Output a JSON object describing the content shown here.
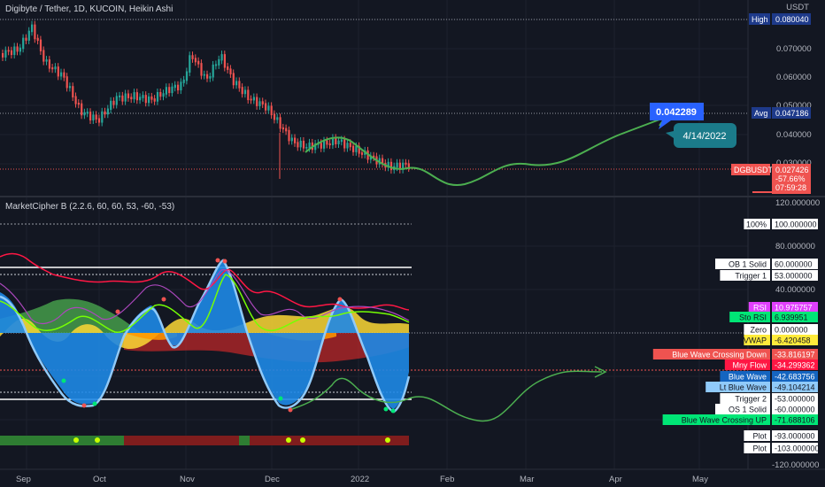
{
  "header": {
    "symbol_title": "Digibyte / Tether, 1D, KUCOIN, Heikin Ashi",
    "indicator_title": "MarketCipher B (2.2.6, 60, 60, 53, -60, -53)"
  },
  "price_axis": {
    "currency": "USDT",
    "ticks": [
      "0.070000",
      "0.060000",
      "0.050000",
      "0.040000",
      "0.030000"
    ],
    "markers": [
      {
        "tag": "High",
        "value": "0.080040",
        "bg": "#1e3a8a",
        "tagcolor": "#ffffff"
      },
      {
        "tag": "Avg",
        "value": "0.047186",
        "bg": "#1e3a8a",
        "tagcolor": "#ffffff"
      },
      {
        "tag": "DGBUSDT",
        "value": "0.027426",
        "bg": "#ef5350",
        "tagcolor": "#ffffff"
      }
    ],
    "last_change": "-57.66%",
    "countdown": "07:59:28"
  },
  "annotations": {
    "price_callout": "0.042289",
    "date_callout": "4/14/2022"
  },
  "indicator_axis": {
    "ticks": [
      "120.000000",
      "80.000000",
      "40.000000",
      "-120.000000"
    ],
    "labels": [
      {
        "name": "100%",
        "value": "100.000000",
        "bg": "#ffffff",
        "fg": "#131722"
      },
      {
        "name": "OB 1 Solid",
        "value": "60.000000",
        "bg": "#ffffff",
        "fg": "#131722"
      },
      {
        "name": "Trigger 1",
        "value": "53.000000",
        "bg": "#ffffff",
        "fg": "#131722"
      },
      {
        "name": "RSI",
        "value": "10.975757",
        "bg": "#e040fb",
        "fg": "#ffffff"
      },
      {
        "name": "Sto RSI",
        "value": "6.939951",
        "bg": "#00e676",
        "fg": "#131722"
      },
      {
        "name": "Zero",
        "value": "0.000000",
        "bg": "#ffffff",
        "fg": "#131722"
      },
      {
        "name": "VWAP",
        "value": "-6.420458",
        "bg": "#ffeb3b",
        "fg": "#131722"
      },
      {
        "name": "Blue Wave Crossing Down",
        "value": "-33.816197",
        "bg": "#ef5350",
        "fg": "#ffffff"
      },
      {
        "name": "Mny Flow",
        "value": "-34.299362",
        "bg": "#ff1744",
        "fg": "#ffffff"
      },
      {
        "name": "Blue Wave",
        "value": "-42.683756",
        "bg": "#1565c0",
        "fg": "#ffffff"
      },
      {
        "name": "Lt Blue Wave",
        "value": "-49.104214",
        "bg": "#90caf9",
        "fg": "#131722"
      },
      {
        "name": "Trigger 2",
        "value": "-53.000000",
        "bg": "#ffffff",
        "fg": "#131722"
      },
      {
        "name": "OS 1 Solid",
        "value": "-60.000000",
        "bg": "#ffffff",
        "fg": "#131722"
      },
      {
        "name": "Blue Wave Crossing UP",
        "value": "-71.688106",
        "bg": "#00e676",
        "fg": "#131722"
      },
      {
        "name": "Plot",
        "value": "-93.000000",
        "bg": "#ffffff",
        "fg": "#131722"
      },
      {
        "name": "Plot",
        "value": "-103.000000",
        "bg": "#ffffff",
        "fg": "#131722"
      }
    ]
  },
  "time_axis": {
    "labels": [
      "Sep",
      "Oct",
      "Nov",
      "Dec",
      "2022",
      "Feb",
      "Mar",
      "Apr",
      "May"
    ]
  },
  "chart_data": {
    "type": "candlestick",
    "title": "Digibyte / Tether, 1D, KUCOIN, Heikin Ashi",
    "x_range": [
      "Sep 2021",
      "Jan 2022"
    ],
    "y_range": [
      0.025,
      0.08
    ],
    "series": [
      {
        "name": "DGBUSDT close",
        "values_approx": [
          0.065,
          0.075,
          0.058,
          0.05,
          0.055,
          0.07,
          0.048,
          0.044,
          0.037,
          0.032,
          0.028,
          0.027426
        ]
      }
    ]
  },
  "colors": {
    "up": "#26a69a",
    "down": "#ef5350",
    "projection": "#4caf50",
    "background": "#131722"
  }
}
